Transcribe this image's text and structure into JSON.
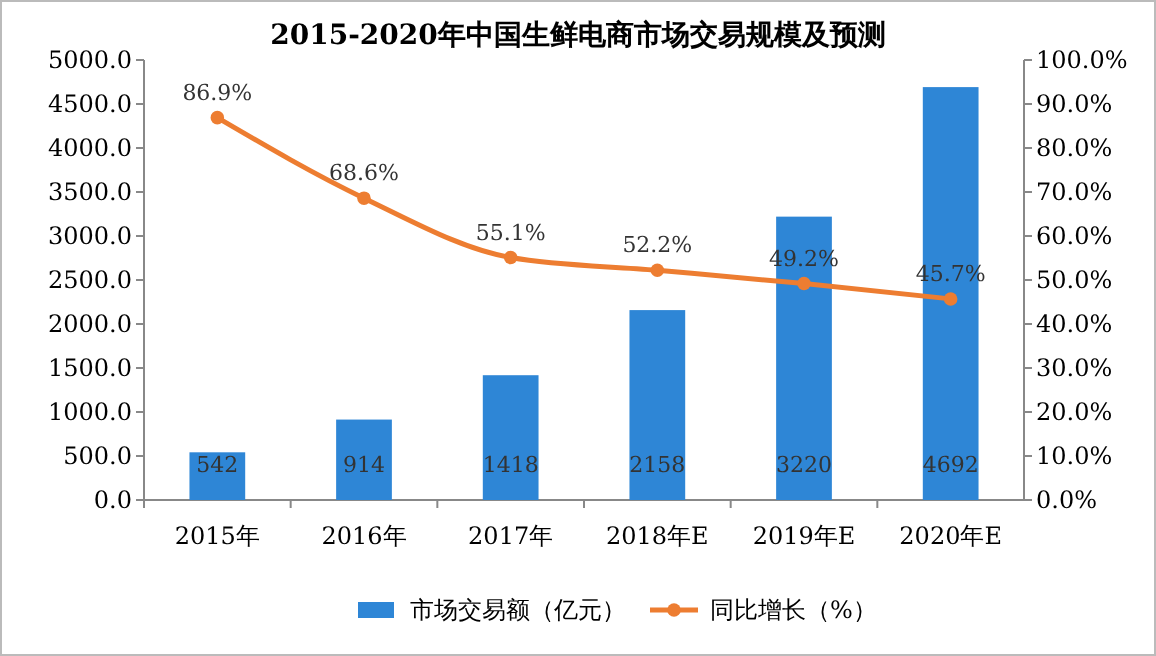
{
  "chart_data": {
    "type": "bar",
    "title": "2015-2020年中国生鲜电商市场交易规模及预测",
    "categories": [
      "2015年",
      "2016年",
      "2017年",
      "2018年E",
      "2019年E",
      "2020年E"
    ],
    "series": [
      {
        "name": "市场交易额（亿元）",
        "color": "#2e86d6",
        "values": [
          542,
          914,
          1418,
          2158,
          3220,
          4692
        ],
        "value_labels": [
          "542",
          "914",
          "1418",
          "2158",
          "3220",
          "4692"
        ]
      },
      {
        "name": "同比增长（%）",
        "type": "line",
        "axis": "y2",
        "color": "#ed7d31",
        "values": [
          86.9,
          68.6,
          55.1,
          52.2,
          49.2,
          45.7
        ],
        "value_labels": [
          "86.9%",
          "68.6%",
          "55.1%",
          "52.2%",
          "49.2%",
          "45.7%"
        ]
      }
    ],
    "ylim": [
      0,
      5000
    ],
    "yticks": [
      {
        "value": 0,
        "label": "0.0"
      },
      {
        "value": 500,
        "label": "500.0"
      },
      {
        "value": 1000,
        "label": "1000.0"
      },
      {
        "value": 1500,
        "label": "1500.0"
      },
      {
        "value": 2000,
        "label": "2000.0"
      },
      {
        "value": 2500,
        "label": "2500.0"
      },
      {
        "value": 3000,
        "label": "3000.0"
      },
      {
        "value": 3500,
        "label": "3500.0"
      },
      {
        "value": 4000,
        "label": "4000.0"
      },
      {
        "value": 4500,
        "label": "4500.0"
      },
      {
        "value": 5000,
        "label": "5000.0"
      }
    ],
    "y2lim": [
      0,
      100
    ],
    "y2ticks": [
      {
        "value": 0,
        "label": "0.0%"
      },
      {
        "value": 10,
        "label": "10.0%"
      },
      {
        "value": 20,
        "label": "20.0%"
      },
      {
        "value": 30,
        "label": "30.0%"
      },
      {
        "value": 40,
        "label": "40.0%"
      },
      {
        "value": 50,
        "label": "50.0%"
      },
      {
        "value": 60,
        "label": "60.0%"
      },
      {
        "value": 70,
        "label": "70.0%"
      },
      {
        "value": 80,
        "label": "80.0%"
      },
      {
        "value": 90,
        "label": "90.0%"
      },
      {
        "value": 100,
        "label": "100.0%"
      }
    ],
    "legend": "bottom",
    "marker": "circle",
    "grid": false
  }
}
